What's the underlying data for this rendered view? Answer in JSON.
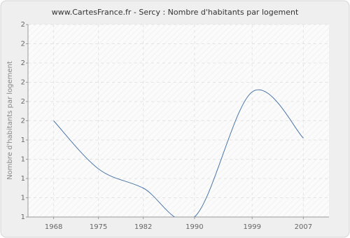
{
  "chart_data": {
    "type": "line",
    "title": "www.CartesFrance.fr - Sercy : Nombre d'habitants par logement",
    "y_label": "Nombre d'habitants par logement",
    "x": [
      1968,
      1975,
      1982,
      1990,
      1999,
      2007
    ],
    "series": [
      {
        "name": "Sercy",
        "color": "#4a76a8",
        "values": [
          1.5,
          1.25,
          1.15,
          1.0,
          1.65,
          1.41
        ]
      }
    ],
    "xlim": [
      1964,
      2011
    ],
    "xticks": [
      1968,
      1975,
      1982,
      1990,
      1999,
      2007
    ],
    "ylim": [
      1,
      2
    ],
    "yticks": [
      1,
      {
        "value": 1.1,
        "label": "1"
      },
      {
        "value": 1.2,
        "label": "1"
      },
      {
        "value": 1.3,
        "label": "1"
      },
      {
        "value": 1.4,
        "label": "1"
      },
      {
        "value": 1.5,
        "label": "2"
      },
      {
        "value": 1.6,
        "label": "2"
      },
      {
        "value": 1.7,
        "label": "2"
      },
      {
        "value": 1.8,
        "label": "2"
      },
      {
        "value": 1.9,
        "label": "2"
      },
      2
    ],
    "grid": true
  }
}
